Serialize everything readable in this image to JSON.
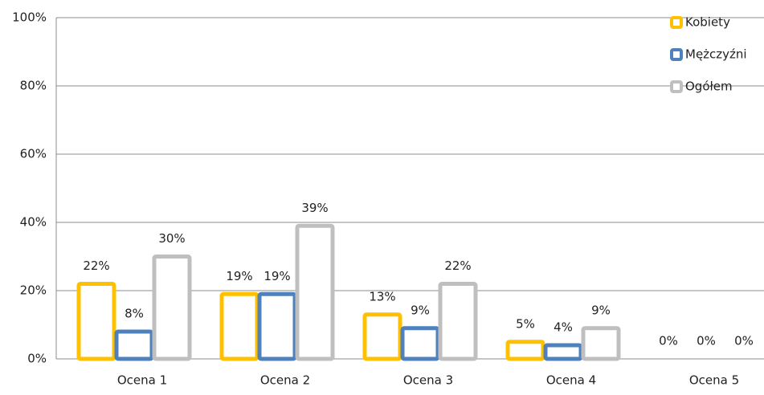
{
  "chart_data": {
    "type": "bar",
    "categories": [
      "Ocena 1",
      "Ocena 2",
      "Ocena 3",
      "Ocena 4",
      "Ocena 5"
    ],
    "series": [
      {
        "name": "Kobiety",
        "color": "#ffc000",
        "values": [
          22,
          19,
          13,
          5,
          0
        ],
        "value_labels": [
          "22%",
          "19%",
          "13%",
          "5%",
          "0%"
        ]
      },
      {
        "name": "Mężczyźni",
        "color": "#4f81bd",
        "values": [
          8,
          19,
          9,
          4,
          0
        ],
        "value_labels": [
          "8%",
          "19%",
          "9%",
          "4%",
          "0%"
        ]
      },
      {
        "name": "Ogółem",
        "color": "#bfbfbf",
        "values": [
          30,
          39,
          22,
          9,
          0
        ],
        "value_labels": [
          "30%",
          "39%",
          "22%",
          "9%",
          "0%"
        ]
      }
    ],
    "ylim": [
      0,
      100
    ],
    "yticks": [
      {
        "value": 0,
        "label": "0%"
      },
      {
        "value": 20,
        "label": "20%"
      },
      {
        "value": 40,
        "label": "40%"
      },
      {
        "value": 60,
        "label": "60%"
      },
      {
        "value": 80,
        "label": "80%"
      },
      {
        "value": 100,
        "label": "100%"
      }
    ],
    "grid": true,
    "legend": "top-right"
  }
}
